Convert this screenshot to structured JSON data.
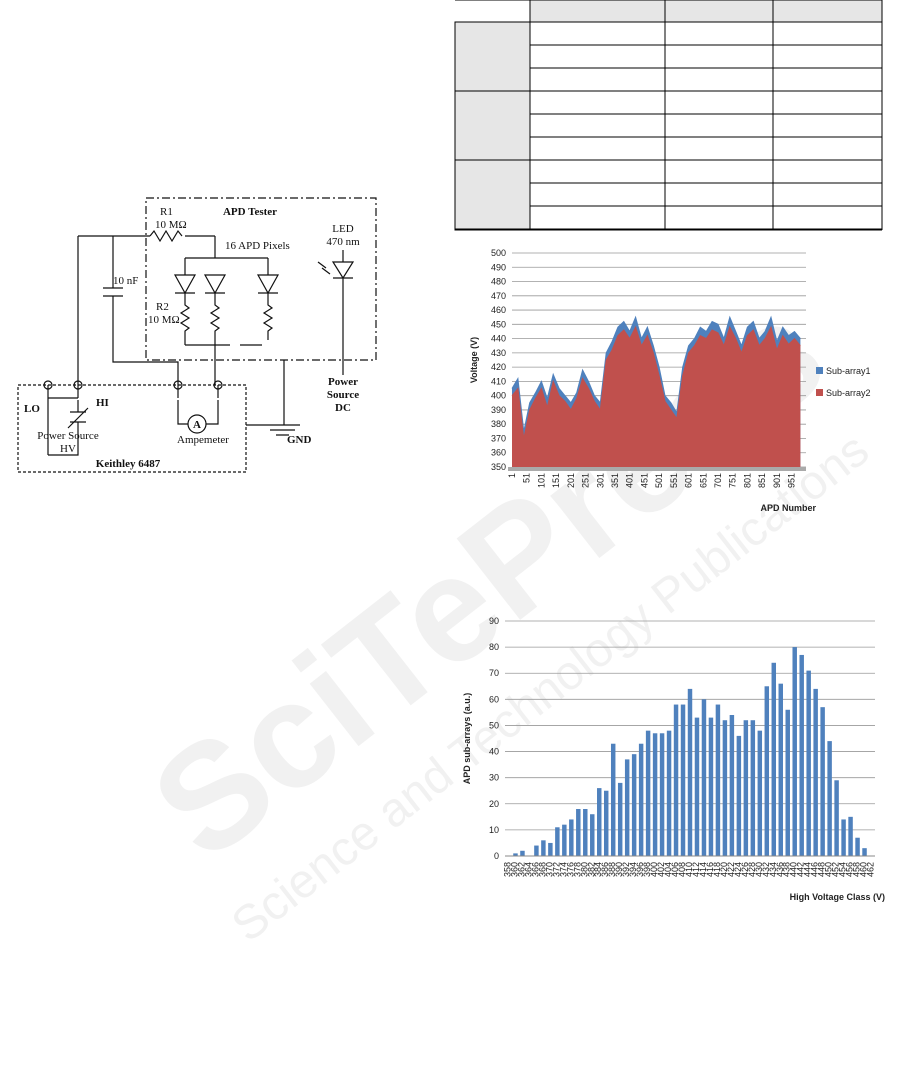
{
  "watermark": {
    "title": "SciTePress",
    "subtitle": "Science and Technology Publications"
  },
  "circuit": {
    "tester": "APD Tester",
    "r1": "R1",
    "r1_value": "10 MΩ",
    "pixels": "16 APD Pixels",
    "led": "LED",
    "led_wavelength": "470 nm",
    "capacitor": "10 nF",
    "r2": "R2",
    "r2_value": "10 MΩ",
    "lo": "LO",
    "hi": "HI",
    "ammeter_symbol": "A",
    "hv_source_1": "Power Source",
    "hv_source_2": "HV",
    "ammeter": "Ampemeter",
    "gnd": "GND",
    "keithley": "Keithley 6487",
    "dc_source_1": "Power",
    "dc_source_2": "Source",
    "dc_source_3": "DC"
  },
  "chart_data": [
    {
      "type": "area",
      "x_label": "APD Number",
      "y_label": "Voltage (V)",
      "x": [
        1,
        21,
        41,
        61,
        81,
        101,
        121,
        141,
        161,
        181,
        201,
        221,
        241,
        261,
        281,
        301,
        321,
        341,
        361,
        381,
        401,
        421,
        441,
        461,
        481,
        501,
        521,
        541,
        561,
        581,
        601,
        621,
        641,
        661,
        681,
        701,
        721,
        741,
        761,
        781,
        801,
        821,
        841,
        861,
        881,
        901,
        921,
        941,
        961,
        981
      ],
      "series": [
        {
          "name": "Sub-array1",
          "color": "#4f81bd",
          "values": [
            405,
            412,
            375,
            395,
            402,
            410,
            398,
            415,
            405,
            400,
            395,
            402,
            418,
            410,
            400,
            395,
            430,
            438,
            448,
            452,
            445,
            455,
            440,
            448,
            435,
            420,
            400,
            395,
            388,
            420,
            435,
            440,
            448,
            445,
            452,
            450,
            440,
            455,
            445,
            435,
            448,
            452,
            440,
            445,
            455,
            438,
            448,
            442,
            445,
            440
          ]
        },
        {
          "name": "Sub-array2",
          "color": "#c0504d",
          "values": [
            400,
            405,
            370,
            390,
            398,
            405,
            392,
            410,
            400,
            396,
            390,
            398,
            412,
            405,
            396,
            390,
            425,
            432,
            442,
            446,
            440,
            448,
            435,
            442,
            430,
            414,
            396,
            390,
            384,
            414,
            430,
            435,
            442,
            440,
            446,
            444,
            435,
            448,
            440,
            430,
            442,
            446,
            435,
            440,
            448,
            432,
            442,
            436,
            440,
            435
          ]
        }
      ],
      "xlim": [
        1,
        1000
      ],
      "xticks": [
        1,
        51,
        101,
        151,
        201,
        251,
        301,
        351,
        401,
        451,
        501,
        551,
        601,
        651,
        701,
        751,
        801,
        851,
        901,
        951
      ],
      "ylim": [
        350,
        500
      ],
      "yticks": [
        350,
        360,
        370,
        380,
        390,
        400,
        410,
        420,
        430,
        440,
        450,
        460,
        470,
        480,
        490,
        500
      ],
      "grid": true,
      "legend": "right"
    },
    {
      "type": "bar",
      "x_label": "High Voltage Class (V)",
      "y_label": "APD sub-arrays (a.u.)",
      "color": "#4f81bd",
      "categories": [
        "358",
        "360",
        "362",
        "364",
        "366",
        "368",
        "370",
        "372",
        "374",
        "376",
        "378",
        "380",
        "382",
        "384",
        "386",
        "388",
        "390",
        "392",
        "394",
        "396",
        "398",
        "400",
        "402",
        "404",
        "406",
        "408",
        "410",
        "412",
        "414",
        "416",
        "418",
        "420",
        "422",
        "424",
        "426",
        "428",
        "430",
        "432",
        "434",
        "436",
        "438",
        "440",
        "442",
        "444",
        "446",
        "448",
        "450",
        "452",
        "454",
        "456",
        "458",
        "460",
        "462"
      ],
      "values": [
        0,
        1,
        2,
        0,
        4,
        6,
        5,
        11,
        12,
        14,
        18,
        18,
        16,
        26,
        25,
        43,
        28,
        37,
        39,
        43,
        48,
        47,
        47,
        48,
        58,
        58,
        64,
        53,
        60,
        53,
        58,
        52,
        54,
        46,
        52,
        52,
        48,
        65,
        74,
        66,
        56,
        80,
        77,
        71,
        64,
        57,
        44,
        29,
        14,
        15,
        7,
        3,
        0
      ],
      "ylim": [
        0,
        90
      ],
      "yticks": [
        0,
        10,
        20,
        30,
        40,
        50,
        60,
        70,
        80,
        90
      ],
      "grid": true
    }
  ]
}
